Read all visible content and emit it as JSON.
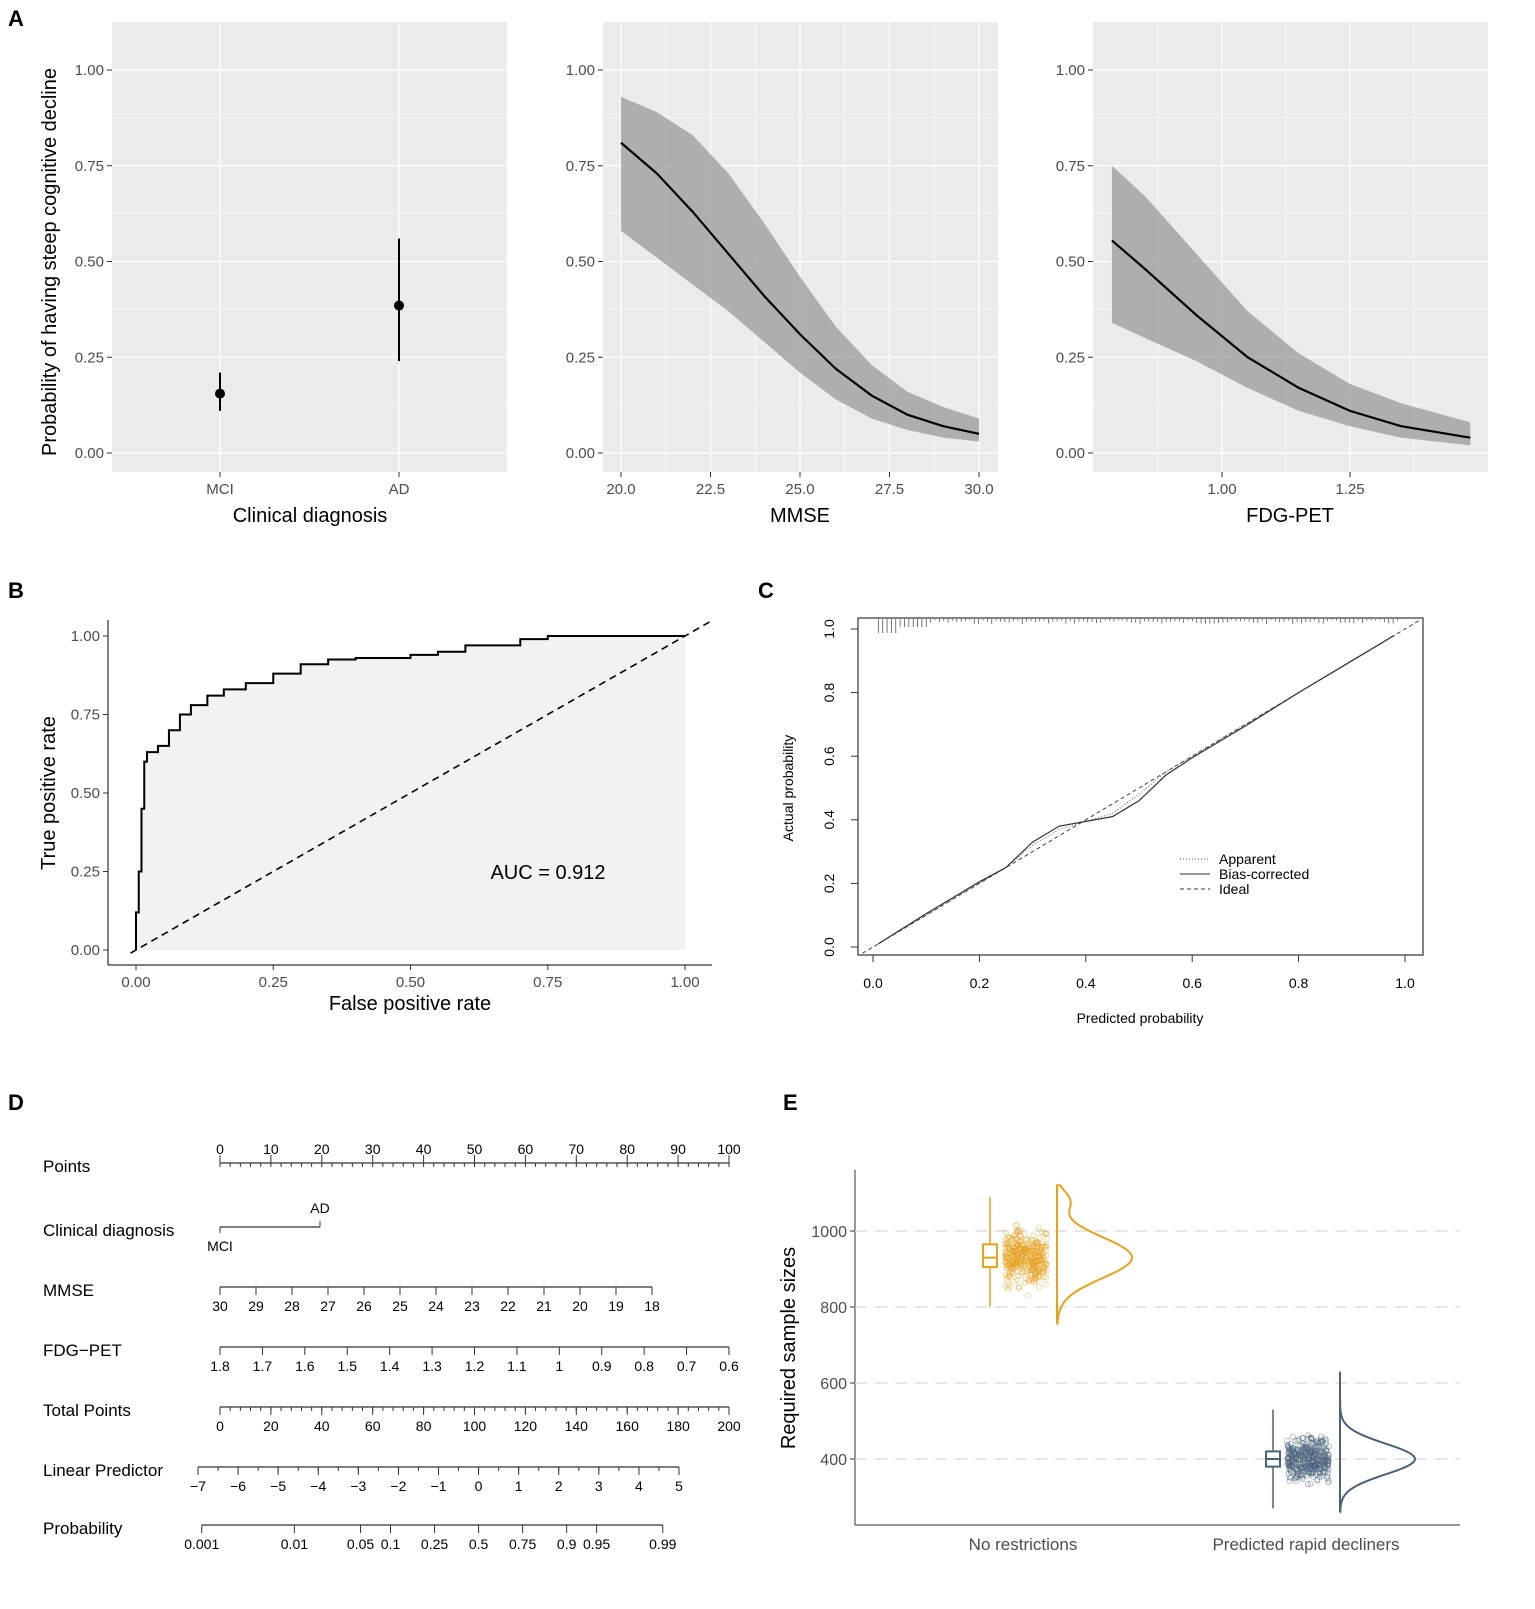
{
  "panel_labels": [
    "A",
    "B",
    "C",
    "D",
    "E"
  ],
  "chart_data": [
    {
      "panel": "A",
      "type": "scatter",
      "ylabel": "Probability of having steep cognitive decline",
      "xlabel": "Clinical diagnosis",
      "categories": [
        "MCI",
        "AD"
      ],
      "values": [
        0.155,
        0.385
      ],
      "lower": [
        0.11,
        0.24
      ],
      "upper": [
        0.21,
        0.56
      ],
      "ylim": [
        0,
        1
      ],
      "yticks": [
        "0.00",
        "0.25",
        "0.50",
        "0.75",
        "1.00"
      ],
      "grid": true,
      "background": "#ebebeb"
    },
    {
      "panel": "A",
      "type": "line",
      "xlabel": "MMSE",
      "x": [
        20,
        21,
        22,
        23,
        24,
        25,
        26,
        27,
        28,
        29,
        30
      ],
      "y": [
        0.81,
        0.73,
        0.63,
        0.52,
        0.41,
        0.31,
        0.22,
        0.15,
        0.1,
        0.07,
        0.05
      ],
      "lower": [
        0.58,
        0.51,
        0.44,
        0.37,
        0.29,
        0.21,
        0.14,
        0.09,
        0.06,
        0.04,
        0.03
      ],
      "upper": [
        0.93,
        0.89,
        0.83,
        0.73,
        0.6,
        0.46,
        0.33,
        0.23,
        0.16,
        0.12,
        0.09
      ],
      "xlim": [
        19.5,
        30.5
      ],
      "xticks": [
        "20.0",
        "22.5",
        "25.0",
        "27.5",
        "30.0"
      ],
      "ylim": [
        0,
        1
      ],
      "yticks": [
        "0.00",
        "0.25",
        "0.50",
        "0.75",
        "1.00"
      ]
    },
    {
      "panel": "A",
      "type": "line",
      "xlabel": "FDG-PET",
      "x": [
        0.785,
        0.85,
        0.95,
        1.05,
        1.15,
        1.25,
        1.35,
        1.485
      ],
      "y": [
        0.555,
        0.48,
        0.36,
        0.25,
        0.17,
        0.11,
        0.07,
        0.04
      ],
      "lower": [
        0.34,
        0.3,
        0.24,
        0.17,
        0.11,
        0.07,
        0.04,
        0.02
      ],
      "upper": [
        0.75,
        0.67,
        0.52,
        0.37,
        0.26,
        0.18,
        0.13,
        0.08
      ],
      "xlim": [
        0.75,
        1.52
      ],
      "xticks": [
        "1.00",
        "1.25"
      ],
      "ylim": [
        0,
        1
      ],
      "yticks": [
        "0.00",
        "0.25",
        "0.50",
        "0.75",
        "1.00"
      ]
    },
    {
      "panel": "B",
      "type": "line",
      "xlabel": "False positive rate",
      "ylabel": "True positive rate",
      "annotation": "AUC = 0.912",
      "x": [
        0,
        0,
        0.005,
        0.01,
        0.015,
        0.02,
        0.04,
        0.06,
        0.08,
        0.1,
        0.13,
        0.16,
        0.2,
        0.25,
        0.3,
        0.35,
        0.4,
        0.5,
        0.55,
        0.6,
        0.7,
        0.75,
        1
      ],
      "y": [
        0,
        0.12,
        0.25,
        0.45,
        0.6,
        0.63,
        0.65,
        0.7,
        0.75,
        0.78,
        0.81,
        0.83,
        0.85,
        0.88,
        0.91,
        0.925,
        0.93,
        0.94,
        0.95,
        0.97,
        0.99,
        1,
        1
      ],
      "xlim": [
        0,
        1
      ],
      "ylim": [
        0,
        1
      ],
      "xticks": [
        "0.00",
        "0.25",
        "0.50",
        "0.75",
        "1.00"
      ],
      "yticks": [
        "0.00",
        "0.25",
        "0.50",
        "0.75",
        "1.00"
      ]
    },
    {
      "panel": "C",
      "type": "line",
      "xlabel": "Predicted probability",
      "ylabel": "Actual probability",
      "legend": [
        "Apparent",
        "Bias-corrected",
        "Ideal"
      ],
      "legend_position": "center-right",
      "x": [
        0.01,
        0.1,
        0.2,
        0.25,
        0.3,
        0.35,
        0.4,
        0.45,
        0.5,
        0.55,
        0.6,
        0.7,
        0.8,
        0.9,
        0.98
      ],
      "apparent": [
        0.01,
        0.1,
        0.2,
        0.25,
        0.32,
        0.37,
        0.395,
        0.42,
        0.48,
        0.55,
        0.6,
        0.7,
        0.8,
        0.9,
        0.98
      ],
      "bias_corrected": [
        0.01,
        0.105,
        0.205,
        0.25,
        0.33,
        0.38,
        0.395,
        0.41,
        0.46,
        0.54,
        0.595,
        0.695,
        0.8,
        0.9,
        0.98
      ],
      "xlim": [
        -0.03,
        1.03
      ],
      "ylim": [
        -0.03,
        1.03
      ],
      "xticks": [
        "0.0",
        "0.2",
        "0.4",
        "0.6",
        "0.8",
        "1.0"
      ],
      "yticks": [
        "0.0",
        "0.2",
        "0.4",
        "0.6",
        "0.8",
        "1.0"
      ]
    },
    {
      "panel": "D",
      "type": "table",
      "rows": [
        {
          "label": "Points",
          "ticks": [
            "0",
            "10",
            "20",
            "30",
            "40",
            "50",
            "60",
            "70",
            "80",
            "90",
            "100"
          ]
        },
        {
          "label": "Clinical diagnosis",
          "ticks": [
            "MCI",
            "AD"
          ]
        },
        {
          "label": "MMSE",
          "ticks": [
            "30",
            "29",
            "28",
            "27",
            "26",
            "25",
            "24",
            "23",
            "22",
            "21",
            "20",
            "19",
            "18"
          ]
        },
        {
          "label": "FDG−PET",
          "ticks": [
            "1.8",
            "1.7",
            "1.6",
            "1.5",
            "1.4",
            "1.3",
            "1.2",
            "1.1",
            "1",
            "0.9",
            "0.8",
            "0.7",
            "0.6"
          ]
        },
        {
          "label": "Total Points",
          "ticks": [
            "0",
            "20",
            "40",
            "60",
            "80",
            "100",
            "120",
            "140",
            "160",
            "180",
            "200"
          ]
        },
        {
          "label": "Linear Predictor",
          "ticks": [
            "−7",
            "−6",
            "−5",
            "−4",
            "−3",
            "−2",
            "−1",
            "0",
            "1",
            "2",
            "3",
            "4",
            "5"
          ]
        },
        {
          "label": "Probability",
          "ticks": [
            "0.001",
            "0.01",
            "0.05",
            "0.1",
            "0.25",
            "0.5",
            "0.75",
            "0.9",
            "0.95",
            "0.99"
          ]
        }
      ]
    },
    {
      "panel": "E",
      "type": "box",
      "ylabel": "Required sample sizes",
      "categories": [
        "No restrictions",
        "Predicted rapid decliners"
      ],
      "colors": [
        "#E5A21E",
        "#48627A"
      ],
      "median": [
        930,
        400
      ],
      "q1": [
        905,
        380
      ],
      "q3": [
        965,
        420
      ],
      "whisker_low": [
        800,
        270
      ],
      "whisker_high": [
        1090,
        530
      ],
      "range": [
        [
          755,
          1120
        ],
        [
          260,
          630
        ]
      ],
      "ylim": [
        240,
        1150
      ],
      "yticks": [
        "400",
        "600",
        "800",
        "1000"
      ]
    }
  ]
}
